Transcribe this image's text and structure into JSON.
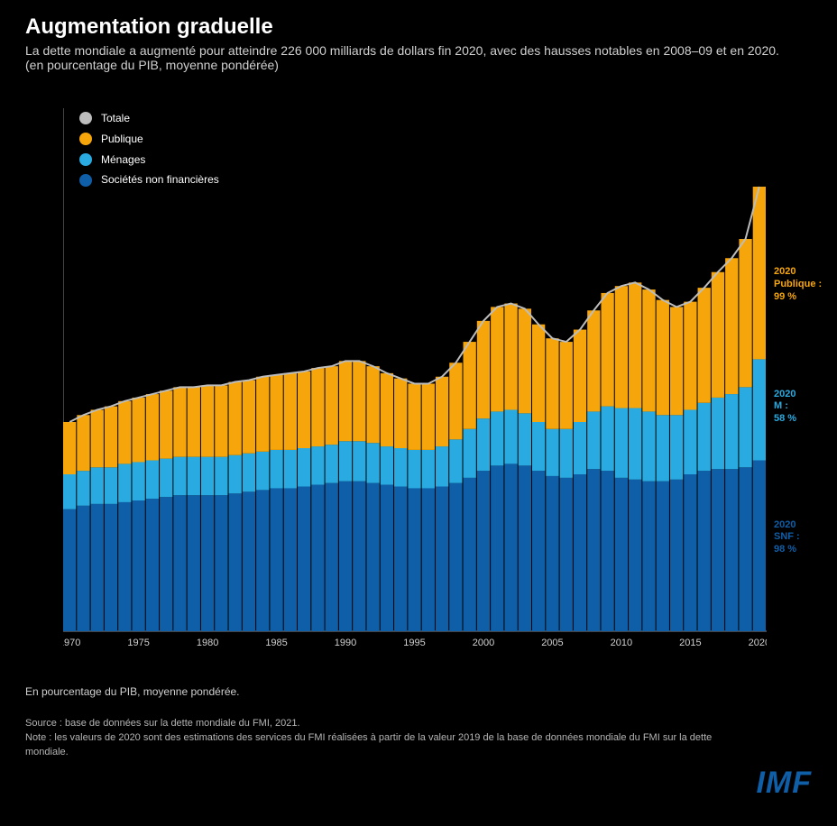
{
  "title": "Augmentation graduelle",
  "subtitle": "La dette mondiale a augmenté pour atteindre 226 000 milliards de dollars fin 2020, avec des hausses notables en 2008–09 et en 2020. (en pourcentage du PIB, moyenne pondérée)",
  "legend": [
    {
      "label": "Totale",
      "color": "#bdbdbd"
    },
    {
      "label": "Publique",
      "color": "#f6a60a"
    },
    {
      "label": "Ménages",
      "color": "#29abe2"
    },
    {
      "label": "Sociétés non financières",
      "color": "#0f5ea8"
    }
  ],
  "chart": {
    "type": "stacked-bar-area",
    "background": "#000000",
    "x": {
      "start": 1970,
      "end": 2020,
      "ticks": [
        1970,
        1975,
        1980,
        1985,
        1990,
        1995,
        2000,
        2005,
        2010,
        2015,
        2020
      ]
    },
    "y": {
      "min": 0,
      "max": 300,
      "ticks": [
        0,
        50,
        100,
        150,
        200,
        250,
        300
      ]
    },
    "axis_color": "#888888",
    "gridline_color": "#333333",
    "text_color": "#d0d0d0",
    "tick_fontsize": 11,
    "line_width": 2,
    "bar_gap": 1,
    "series": [
      {
        "key": "snf",
        "color": "#0f5ea8",
        "values": [
          70,
          72,
          73,
          73,
          74,
          75,
          76,
          77,
          78,
          78,
          78,
          78,
          79,
          80,
          81,
          82,
          82,
          83,
          84,
          85,
          86,
          86,
          85,
          84,
          83,
          82,
          82,
          83,
          85,
          88,
          92,
          95,
          96,
          95,
          92,
          89,
          88,
          90,
          93,
          92,
          88,
          87,
          86,
          86,
          87,
          90,
          92,
          93,
          93,
          94,
          98
        ]
      },
      {
        "key": "menages",
        "color": "#29abe2",
        "values": [
          20,
          20,
          21,
          21,
          22,
          22,
          22,
          22,
          22,
          22,
          22,
          22,
          22,
          22,
          22,
          22,
          22,
          22,
          22,
          22,
          23,
          23,
          23,
          22,
          22,
          22,
          22,
          23,
          25,
          28,
          30,
          31,
          31,
          30,
          28,
          27,
          28,
          30,
          33,
          37,
          40,
          41,
          40,
          38,
          37,
          37,
          39,
          41,
          43,
          46,
          58
        ]
      },
      {
        "key": "publique",
        "color": "#f6a60a",
        "values": [
          30,
          32,
          33,
          35,
          36,
          37,
          38,
          39,
          40,
          40,
          41,
          41,
          42,
          42,
          43,
          43,
          44,
          44,
          45,
          45,
          46,
          46,
          44,
          42,
          40,
          38,
          38,
          40,
          44,
          50,
          56,
          60,
          61,
          60,
          56,
          52,
          50,
          53,
          58,
          65,
          70,
          72,
          70,
          66,
          62,
          62,
          66,
          72,
          78,
          85,
          99
        ]
      }
    ],
    "total_line": {
      "color": "#bdbdbd",
      "width": 2
    }
  },
  "annotations": [
    {
      "text": "2020\nPublique :\n99 %",
      "color": "#f6a60a",
      "at_value": 200
    },
    {
      "text": "2020\nM :\n58 %",
      "color": "#29abe2",
      "at_value": 130
    },
    {
      "text": "2020\nSNF :\n98 %",
      "color": "#0f5ea8",
      "at_value": 55
    }
  ],
  "xlabel": "En pourcentage du PIB, moyenne pondérée.",
  "source": "Source : base de données sur la dette mondiale du FMI, 2021.\nNote : les valeurs de 2020 sont des estimations des services du FMI réalisées à partir de la valeur 2019 de la base de données mondiale du FMI sur la dette mondiale.",
  "logo": {
    "text": "IMF",
    "color": "#0f5ea8"
  }
}
